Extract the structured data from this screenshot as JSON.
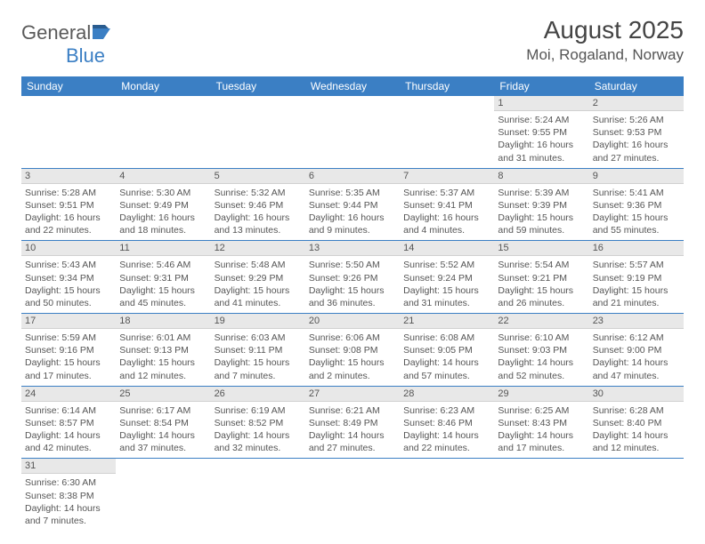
{
  "logo": {
    "text1": "General",
    "text2": "Blue"
  },
  "title": "August 2025",
  "location": "Moi, Rogaland, Norway",
  "colors": {
    "header_bg": "#3b7fc4",
    "header_text": "#ffffff",
    "daynum_bg": "#e8e8e8",
    "row_divider": "#3b7fc4",
    "body_text": "#555555"
  },
  "weekdays": [
    "Sunday",
    "Monday",
    "Tuesday",
    "Wednesday",
    "Thursday",
    "Friday",
    "Saturday"
  ],
  "weeks": [
    [
      null,
      null,
      null,
      null,
      null,
      {
        "n": "1",
        "sunrise": "Sunrise: 5:24 AM",
        "sunset": "Sunset: 9:55 PM",
        "daylight": "Daylight: 16 hours and 31 minutes."
      },
      {
        "n": "2",
        "sunrise": "Sunrise: 5:26 AM",
        "sunset": "Sunset: 9:53 PM",
        "daylight": "Daylight: 16 hours and 27 minutes."
      }
    ],
    [
      {
        "n": "3",
        "sunrise": "Sunrise: 5:28 AM",
        "sunset": "Sunset: 9:51 PM",
        "daylight": "Daylight: 16 hours and 22 minutes."
      },
      {
        "n": "4",
        "sunrise": "Sunrise: 5:30 AM",
        "sunset": "Sunset: 9:49 PM",
        "daylight": "Daylight: 16 hours and 18 minutes."
      },
      {
        "n": "5",
        "sunrise": "Sunrise: 5:32 AM",
        "sunset": "Sunset: 9:46 PM",
        "daylight": "Daylight: 16 hours and 13 minutes."
      },
      {
        "n": "6",
        "sunrise": "Sunrise: 5:35 AM",
        "sunset": "Sunset: 9:44 PM",
        "daylight": "Daylight: 16 hours and 9 minutes."
      },
      {
        "n": "7",
        "sunrise": "Sunrise: 5:37 AM",
        "sunset": "Sunset: 9:41 PM",
        "daylight": "Daylight: 16 hours and 4 minutes."
      },
      {
        "n": "8",
        "sunrise": "Sunrise: 5:39 AM",
        "sunset": "Sunset: 9:39 PM",
        "daylight": "Daylight: 15 hours and 59 minutes."
      },
      {
        "n": "9",
        "sunrise": "Sunrise: 5:41 AM",
        "sunset": "Sunset: 9:36 PM",
        "daylight": "Daylight: 15 hours and 55 minutes."
      }
    ],
    [
      {
        "n": "10",
        "sunrise": "Sunrise: 5:43 AM",
        "sunset": "Sunset: 9:34 PM",
        "daylight": "Daylight: 15 hours and 50 minutes."
      },
      {
        "n": "11",
        "sunrise": "Sunrise: 5:46 AM",
        "sunset": "Sunset: 9:31 PM",
        "daylight": "Daylight: 15 hours and 45 minutes."
      },
      {
        "n": "12",
        "sunrise": "Sunrise: 5:48 AM",
        "sunset": "Sunset: 9:29 PM",
        "daylight": "Daylight: 15 hours and 41 minutes."
      },
      {
        "n": "13",
        "sunrise": "Sunrise: 5:50 AM",
        "sunset": "Sunset: 9:26 PM",
        "daylight": "Daylight: 15 hours and 36 minutes."
      },
      {
        "n": "14",
        "sunrise": "Sunrise: 5:52 AM",
        "sunset": "Sunset: 9:24 PM",
        "daylight": "Daylight: 15 hours and 31 minutes."
      },
      {
        "n": "15",
        "sunrise": "Sunrise: 5:54 AM",
        "sunset": "Sunset: 9:21 PM",
        "daylight": "Daylight: 15 hours and 26 minutes."
      },
      {
        "n": "16",
        "sunrise": "Sunrise: 5:57 AM",
        "sunset": "Sunset: 9:19 PM",
        "daylight": "Daylight: 15 hours and 21 minutes."
      }
    ],
    [
      {
        "n": "17",
        "sunrise": "Sunrise: 5:59 AM",
        "sunset": "Sunset: 9:16 PM",
        "daylight": "Daylight: 15 hours and 17 minutes."
      },
      {
        "n": "18",
        "sunrise": "Sunrise: 6:01 AM",
        "sunset": "Sunset: 9:13 PM",
        "daylight": "Daylight: 15 hours and 12 minutes."
      },
      {
        "n": "19",
        "sunrise": "Sunrise: 6:03 AM",
        "sunset": "Sunset: 9:11 PM",
        "daylight": "Daylight: 15 hours and 7 minutes."
      },
      {
        "n": "20",
        "sunrise": "Sunrise: 6:06 AM",
        "sunset": "Sunset: 9:08 PM",
        "daylight": "Daylight: 15 hours and 2 minutes."
      },
      {
        "n": "21",
        "sunrise": "Sunrise: 6:08 AM",
        "sunset": "Sunset: 9:05 PM",
        "daylight": "Daylight: 14 hours and 57 minutes."
      },
      {
        "n": "22",
        "sunrise": "Sunrise: 6:10 AM",
        "sunset": "Sunset: 9:03 PM",
        "daylight": "Daylight: 14 hours and 52 minutes."
      },
      {
        "n": "23",
        "sunrise": "Sunrise: 6:12 AM",
        "sunset": "Sunset: 9:00 PM",
        "daylight": "Daylight: 14 hours and 47 minutes."
      }
    ],
    [
      {
        "n": "24",
        "sunrise": "Sunrise: 6:14 AM",
        "sunset": "Sunset: 8:57 PM",
        "daylight": "Daylight: 14 hours and 42 minutes."
      },
      {
        "n": "25",
        "sunrise": "Sunrise: 6:17 AM",
        "sunset": "Sunset: 8:54 PM",
        "daylight": "Daylight: 14 hours and 37 minutes."
      },
      {
        "n": "26",
        "sunrise": "Sunrise: 6:19 AM",
        "sunset": "Sunset: 8:52 PM",
        "daylight": "Daylight: 14 hours and 32 minutes."
      },
      {
        "n": "27",
        "sunrise": "Sunrise: 6:21 AM",
        "sunset": "Sunset: 8:49 PM",
        "daylight": "Daylight: 14 hours and 27 minutes."
      },
      {
        "n": "28",
        "sunrise": "Sunrise: 6:23 AM",
        "sunset": "Sunset: 8:46 PM",
        "daylight": "Daylight: 14 hours and 22 minutes."
      },
      {
        "n": "29",
        "sunrise": "Sunrise: 6:25 AM",
        "sunset": "Sunset: 8:43 PM",
        "daylight": "Daylight: 14 hours and 17 minutes."
      },
      {
        "n": "30",
        "sunrise": "Sunrise: 6:28 AM",
        "sunset": "Sunset: 8:40 PM",
        "daylight": "Daylight: 14 hours and 12 minutes."
      }
    ],
    [
      {
        "n": "31",
        "sunrise": "Sunrise: 6:30 AM",
        "sunset": "Sunset: 8:38 PM",
        "daylight": "Daylight: 14 hours and 7 minutes."
      },
      null,
      null,
      null,
      null,
      null,
      null
    ]
  ]
}
